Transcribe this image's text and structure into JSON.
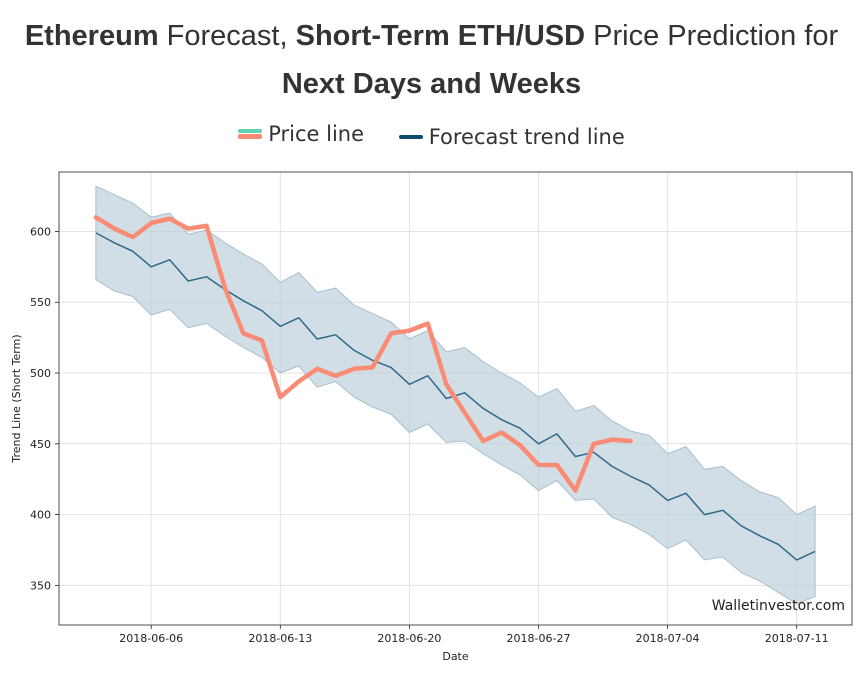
{
  "title": {
    "part1_bold": "Ethereum",
    "part2": " Forecast, ",
    "part3_bold": "Short-Term ETH/USD",
    "part4": " Price Prediction for",
    "line2_bold": "Next Days and Weeks"
  },
  "legend": {
    "price_label": "Price line",
    "trend_label": "Forecast trend line"
  },
  "watermark": "Walletinvestor.com",
  "colors": {
    "price": "#fa8c76",
    "price_legend_top": "#5fd3b3",
    "trend": "#2f6a8a",
    "band": "#b9ccd9"
  },
  "chart_data": {
    "type": "line",
    "xlabel": "Date",
    "ylabel": "Trend Line (Short Term)",
    "x_start": "2018-06-03",
    "xlim": [
      "2018-06-01",
      "2018-07-14"
    ],
    "ylim": [
      322,
      642
    ],
    "xticks": [
      "2018-06-06",
      "2018-06-13",
      "2018-06-20",
      "2018-06-27",
      "2018-07-04",
      "2018-07-11"
    ],
    "yticks": [
      350,
      400,
      450,
      500,
      550,
      600
    ],
    "grid": true,
    "legend_position": "top-center",
    "series": [
      {
        "name": "Price line",
        "x": [
          "2018-06-03",
          "2018-06-04",
          "2018-06-05",
          "2018-06-06",
          "2018-06-07",
          "2018-06-08",
          "2018-06-09",
          "2018-06-10",
          "2018-06-11",
          "2018-06-12",
          "2018-06-13",
          "2018-06-14",
          "2018-06-15",
          "2018-06-16",
          "2018-06-17",
          "2018-06-18",
          "2018-06-19",
          "2018-06-20",
          "2018-06-21",
          "2018-06-22",
          "2018-06-23",
          "2018-06-24",
          "2018-06-25",
          "2018-06-26",
          "2018-06-27",
          "2018-06-28",
          "2018-06-29",
          "2018-06-30",
          "2018-07-01",
          "2018-07-02"
        ],
        "values": [
          610,
          602,
          596,
          606,
          609,
          602,
          604,
          560,
          528,
          523,
          483,
          494,
          503,
          498,
          503,
          504,
          528,
          530,
          535,
          492,
          472,
          452,
          458,
          449,
          435,
          435,
          417,
          450,
          453,
          452
        ]
      },
      {
        "name": "Forecast trend line",
        "x": [
          "2018-06-03",
          "2018-06-04",
          "2018-06-05",
          "2018-06-06",
          "2018-06-07",
          "2018-06-08",
          "2018-06-09",
          "2018-06-10",
          "2018-06-11",
          "2018-06-12",
          "2018-06-13",
          "2018-06-14",
          "2018-06-15",
          "2018-06-16",
          "2018-06-17",
          "2018-06-18",
          "2018-06-19",
          "2018-06-20",
          "2018-06-21",
          "2018-06-22",
          "2018-06-23",
          "2018-06-24",
          "2018-06-25",
          "2018-06-26",
          "2018-06-27",
          "2018-06-28",
          "2018-06-29",
          "2018-06-30",
          "2018-07-01",
          "2018-07-02",
          "2018-07-03",
          "2018-07-04",
          "2018-07-05",
          "2018-07-06",
          "2018-07-07",
          "2018-07-08",
          "2018-07-09",
          "2018-07-10",
          "2018-07-11",
          "2018-07-12"
        ],
        "values": [
          599,
          592,
          586,
          575,
          580,
          565,
          568,
          559,
          551,
          544,
          533,
          539,
          524,
          527,
          516,
          509,
          504,
          492,
          498,
          482,
          486,
          475,
          467,
          461,
          450,
          457,
          441,
          444,
          434,
          427,
          421,
          410,
          415,
          400,
          403,
          392,
          385,
          379,
          368,
          374
        ]
      }
    ],
    "band": {
      "x": [
        "2018-06-03",
        "2018-06-04",
        "2018-06-05",
        "2018-06-06",
        "2018-06-07",
        "2018-06-08",
        "2018-06-09",
        "2018-06-10",
        "2018-06-11",
        "2018-06-12",
        "2018-06-13",
        "2018-06-14",
        "2018-06-15",
        "2018-06-16",
        "2018-06-17",
        "2018-06-18",
        "2018-06-19",
        "2018-06-20",
        "2018-06-21",
        "2018-06-22",
        "2018-06-23",
        "2018-06-24",
        "2018-06-25",
        "2018-06-26",
        "2018-06-27",
        "2018-06-28",
        "2018-06-29",
        "2018-06-30",
        "2018-07-01",
        "2018-07-02",
        "2018-07-03",
        "2018-07-04",
        "2018-07-05",
        "2018-07-06",
        "2018-07-07",
        "2018-07-08",
        "2018-07-09",
        "2018-07-10",
        "2018-07-11",
        "2018-07-12"
      ],
      "upper": [
        632,
        626,
        620,
        610,
        613,
        598,
        601,
        592,
        584,
        577,
        564,
        571,
        557,
        560,
        548,
        542,
        536,
        524,
        530,
        515,
        518,
        508,
        500,
        493,
        483,
        489,
        473,
        477,
        466,
        459,
        456,
        443,
        448,
        432,
        434,
        424,
        416,
        412,
        400,
        406
      ],
      "lower": [
        566,
        558,
        554,
        541,
        545,
        532,
        535,
        526,
        518,
        511,
        500,
        505,
        490,
        494,
        483,
        476,
        471,
        458,
        464,
        451,
        452,
        443,
        435,
        428,
        417,
        424,
        410,
        411,
        398,
        393,
        386,
        376,
        382,
        368,
        370,
        359,
        353,
        345,
        337,
        342
      ]
    }
  }
}
